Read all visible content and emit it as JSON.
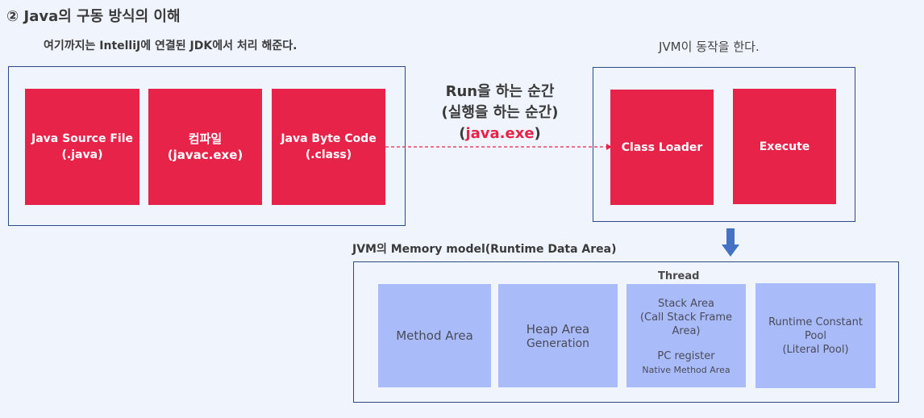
{
  "title": "② Java의 구동 방식의 이해",
  "jdk_note": "여기까지는 IntelliJ에  연결된 JDK에서 처리 해준다.",
  "jvm_note": "JVM이 동작을 한다.",
  "compile_boxes": [
    {
      "line1": "Java Source File",
      "line2": "(.java)"
    },
    {
      "line1": "컴파일",
      "line2": "(javac.exe)"
    },
    {
      "line1": "Java Byte Code",
      "line2": "(.class)"
    }
  ],
  "run_label": {
    "line1": "Run을 하는 순간",
    "line2": "(실행을 하는 순간)",
    "open": "(",
    "exe": "java.exe",
    "close": ")"
  },
  "jvm_boxes": [
    "Class Loader",
    "Execute"
  ],
  "memory_title": "JVM의 Memory model(Runtime Data Area)",
  "thread_label": "Thread",
  "memory_areas": {
    "method": "Method Area",
    "heap": [
      "Heap Area",
      "Generation"
    ],
    "stack": [
      "Stack Area",
      "(Call Stack Frame",
      "Area)"
    ],
    "pc": "PC register",
    "native": "Native Method Area",
    "runtime": [
      "Runtime Constant",
      "Pool",
      "(Literal Pool)"
    ]
  },
  "colors": {
    "red": "#e8234a",
    "blue": "#a9bcf9",
    "border": "#2e4a85",
    "arrow": "#4472c4"
  }
}
